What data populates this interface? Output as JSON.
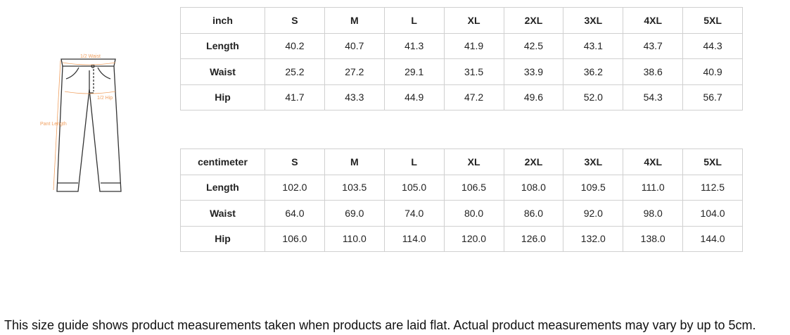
{
  "diagram": {
    "labels": {
      "waist": "1/2 Waist",
      "hip": "1/2 Hip",
      "length": "Pant Length"
    },
    "accent_color": "#f0a060"
  },
  "sizes": [
    "S",
    "M",
    "L",
    "XL",
    "2XL",
    "3XL",
    "4XL",
    "5XL"
  ],
  "inch_table": {
    "unit": "inch",
    "rows": [
      {
        "label": "Length",
        "values": [
          "40.2",
          "40.7",
          "41.3",
          "41.9",
          "42.5",
          "43.1",
          "43.7",
          "44.3"
        ]
      },
      {
        "label": "Waist",
        "values": [
          "25.2",
          "27.2",
          "29.1",
          "31.5",
          "33.9",
          "36.2",
          "38.6",
          "40.9"
        ]
      },
      {
        "label": "Hip",
        "values": [
          "41.7",
          "43.3",
          "44.9",
          "47.2",
          "49.6",
          "52.0",
          "54.3",
          "56.7"
        ]
      }
    ]
  },
  "cm_table": {
    "unit": "centimeter",
    "rows": [
      {
        "label": "Length",
        "values": [
          "102.0",
          "103.5",
          "105.0",
          "106.5",
          "108.0",
          "109.5",
          "111.0",
          "112.5"
        ]
      },
      {
        "label": "Waist",
        "values": [
          "64.0",
          "69.0",
          "74.0",
          "80.0",
          "86.0",
          "92.0",
          "98.0",
          "104.0"
        ]
      },
      {
        "label": "Hip",
        "values": [
          "106.0",
          "110.0",
          "114.0",
          "120.0",
          "126.0",
          "132.0",
          "138.0",
          "144.0"
        ]
      }
    ]
  },
  "note": "This size guide shows product measurements taken when products are laid flat. Actual product measurements may vary by up to 5cm."
}
